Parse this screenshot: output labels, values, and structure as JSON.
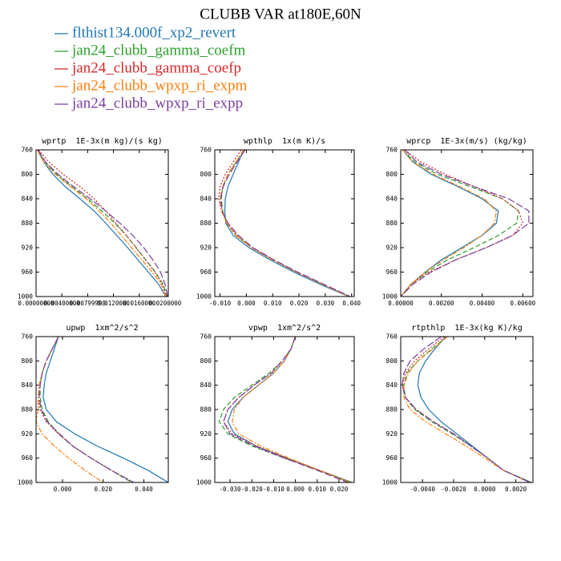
{
  "title": "CLUBB VAR at180E,60N",
  "legend": [
    {
      "name": "flthist134.000f_xp2_revert",
      "color": "#1f77b4"
    },
    {
      "name": "jan24_clubb_gamma_coefm",
      "color": "#2ca02c"
    },
    {
      "name": "jan24_clubb_gamma_coefp",
      "color": "#d62728"
    },
    {
      "name": "jan24_clubb_wpxp_ri_expm",
      "color": "#ff7f0e"
    },
    {
      "name": "jan24_clubb_wpxp_ri_expp",
      "color": "#7b3fa0"
    }
  ],
  "chart_data": [
    {
      "type": "line",
      "title": "wprtp  1E-3x(m kg)/(s kg)",
      "y": [
        760,
        780,
        800,
        820,
        840,
        860,
        880,
        900,
        920,
        940,
        960,
        980,
        1000
      ],
      "ylim": [
        1000,
        760
      ],
      "yticks": [
        760,
        800,
        840,
        880,
        920,
        960,
        1000
      ],
      "xlim": [
        0,
        0.0205
      ],
      "xticks": [
        {
          "value": 0,
          "label": "0.00000000"
        },
        {
          "value": 0.004,
          "label": "0.00400000"
        },
        {
          "value": 0.008,
          "label": "0.00799999"
        },
        {
          "value": 0.012,
          "label": "0.0120000"
        },
        {
          "value": 0.016,
          "label": "0.0160000"
        },
        {
          "value": 0.02,
          "label": "0.0200000"
        }
      ],
      "series": [
        {
          "values": [
            0.0002,
            0.0012,
            0.0026,
            0.0045,
            0.0068,
            0.009,
            0.0108,
            0.0125,
            0.0142,
            0.0158,
            0.0174,
            0.019,
            0.0201
          ]
        },
        {
          "values": [
            0.0002,
            0.0014,
            0.0032,
            0.0055,
            0.008,
            0.0102,
            0.0122,
            0.014,
            0.0155,
            0.017,
            0.0185,
            0.0197,
            0.0203
          ]
        },
        {
          "values": [
            0.0004,
            0.002,
            0.0042,
            0.0068,
            0.009,
            0.0108,
            0.0124,
            0.014,
            0.0155,
            0.017,
            0.0184,
            0.0196,
            0.0202
          ]
        },
        {
          "values": [
            0.0002,
            0.0012,
            0.003,
            0.0053,
            0.0078,
            0.0098,
            0.0116,
            0.0132,
            0.0148,
            0.0164,
            0.018,
            0.0194,
            0.0201
          ]
        },
        {
          "values": [
            0.0003,
            0.0015,
            0.0034,
            0.0058,
            0.0084,
            0.0108,
            0.013,
            0.015,
            0.0167,
            0.0181,
            0.0193,
            0.02,
            0.0204
          ]
        }
      ]
    },
    {
      "type": "line",
      "title": "wpthlp  1x(m K)/s",
      "y": [
        760,
        780,
        800,
        820,
        840,
        860,
        880,
        900,
        920,
        940,
        960,
        980,
        1000
      ],
      "ylim": [
        1000,
        760
      ],
      "yticks": [
        760,
        800,
        840,
        880,
        920,
        960,
        1000
      ],
      "xlim": [
        -0.012,
        0.041
      ],
      "xticks": [
        {
          "value": -0.01,
          "label": "-0.010"
        },
        {
          "value": 0,
          "label": "0.000"
        },
        {
          "value": 0.01,
          "label": "0.010"
        },
        {
          "value": 0.02,
          "label": "0.020"
        },
        {
          "value": 0.03,
          "label": "0.030"
        },
        {
          "value": 0.04,
          "label": "0.040"
        }
      ],
      "series": [
        {
          "values": [
            -0.001,
            -0.003,
            -0.005,
            -0.007,
            -0.008,
            -0.0082,
            -0.0078,
            -0.005,
            0.001,
            0.009,
            0.018,
            0.028,
            0.039
          ]
        },
        {
          "values": [
            -0.001,
            -0.004,
            -0.007,
            -0.009,
            -0.0095,
            -0.009,
            -0.0075,
            -0.004,
            0.002,
            0.01,
            0.019,
            0.029,
            0.039
          ]
        },
        {
          "values": [
            -0.002,
            -0.005,
            -0.008,
            -0.01,
            -0.0105,
            -0.0095,
            -0.007,
            -0.0035,
            0.002,
            0.01,
            0.019,
            0.029,
            0.039
          ]
        },
        {
          "values": [
            -0.001,
            -0.004,
            -0.007,
            -0.009,
            -0.01,
            -0.0095,
            -0.0075,
            -0.004,
            0.002,
            0.01,
            0.019,
            0.029,
            0.039
          ]
        },
        {
          "values": [
            -0.0005,
            -0.0035,
            -0.0065,
            -0.0088,
            -0.0098,
            -0.0092,
            -0.007,
            -0.003,
            0.0025,
            0.0105,
            0.0195,
            0.0295,
            0.0395
          ]
        }
      ]
    },
    {
      "type": "line",
      "title": "wprcp  1E-3x(m/s) (kg/kg)",
      "y": [
        760,
        780,
        800,
        820,
        840,
        860,
        880,
        900,
        920,
        940,
        960,
        980,
        1000
      ],
      "ylim": [
        1000,
        760
      ],
      "yticks": [
        760,
        800,
        840,
        880,
        920,
        960,
        1000
      ],
      "xlim": [
        0,
        0.0065
      ],
      "xticks": [
        {
          "value": 0,
          "label": "0.00000"
        },
        {
          "value": 0.002,
          "label": "0.00200"
        },
        {
          "value": 0.004,
          "label": "0.00400"
        },
        {
          "value": 0.006,
          "label": "0.00600"
        }
      ],
      "series": [
        {
          "values": [
            0.0001,
            0.0006,
            0.0015,
            0.0028,
            0.004,
            0.0048,
            0.0047,
            0.004,
            0.003,
            0.002,
            0.0012,
            0.0005,
            0
          ]
        },
        {
          "values": [
            0.0001,
            0.0007,
            0.0018,
            0.0034,
            0.005,
            0.0058,
            0.0057,
            0.0048,
            0.0036,
            0.0023,
            0.0013,
            0.0005,
            0
          ]
        },
        {
          "values": [
            0.0002,
            0.001,
            0.0022,
            0.0036,
            0.005,
            0.0058,
            0.006,
            0.0055,
            0.0042,
            0.0027,
            0.0014,
            0.0005,
            0
          ]
        },
        {
          "values": [
            0.0001,
            0.0006,
            0.0016,
            0.0029,
            0.0041,
            0.0047,
            0.0046,
            0.004,
            0.0031,
            0.0021,
            0.0012,
            0.0005,
            0
          ]
        },
        {
          "values": [
            0.0002,
            0.0008,
            0.002,
            0.0036,
            0.0053,
            0.0063,
            0.0063,
            0.0055,
            0.0042,
            0.0027,
            0.0015,
            0.0006,
            0
          ]
        }
      ]
    },
    {
      "type": "line",
      "title": "upwp  1xm^2/s^2",
      "y": [
        760,
        780,
        800,
        820,
        840,
        860,
        880,
        900,
        920,
        940,
        960,
        980,
        1000
      ],
      "ylim": [
        1000,
        760
      ],
      "yticks": [
        760,
        800,
        840,
        880,
        920,
        960,
        1000
      ],
      "xlim": [
        -0.013,
        0.052
      ],
      "xticks": [
        {
          "value": 0,
          "label": "0.000"
        },
        {
          "value": 0.02,
          "label": "0.020"
        },
        {
          "value": 0.04,
          "label": "0.040"
        }
      ],
      "series": [
        {
          "values": [
            -0.002,
            -0.004,
            -0.006,
            -0.008,
            -0.009,
            -0.0095,
            -0.008,
            -0.003,
            0.006,
            0.017,
            0.03,
            0.042,
            0.052
          ]
        },
        {
          "values": [
            -0.002,
            -0.005,
            -0.008,
            -0.01,
            -0.011,
            -0.011,
            -0.01,
            -0.007,
            -0.002,
            0.005,
            0.014,
            0.024,
            0.034
          ]
        },
        {
          "values": [
            -0.002,
            -0.005,
            -0.008,
            -0.01,
            -0.0115,
            -0.012,
            -0.011,
            -0.008,
            -0.002,
            0.005,
            0.014,
            0.024,
            0.035
          ]
        },
        {
          "values": [
            -0.002,
            -0.005,
            -0.008,
            -0.01,
            -0.0115,
            -0.012,
            -0.012,
            -0.013,
            -0.01,
            -0.004,
            0.003,
            0.011,
            0.02
          ]
        },
        {
          "values": [
            -0.002,
            -0.005,
            -0.008,
            -0.01,
            -0.011,
            -0.0115,
            -0.0105,
            -0.0075,
            -0.0015,
            0.005,
            0.014,
            0.024,
            0.035
          ]
        }
      ]
    },
    {
      "type": "line",
      "title": "vpwp  1xm^2/s^2",
      "y": [
        760,
        780,
        800,
        820,
        840,
        860,
        880,
        900,
        920,
        940,
        960,
        980,
        1000
      ],
      "ylim": [
        1000,
        760
      ],
      "yticks": [
        760,
        800,
        840,
        880,
        920,
        960,
        1000
      ],
      "xlim": [
        -0.037,
        0.027
      ],
      "xticks": [
        {
          "value": -0.03,
          "label": "-0.030"
        },
        {
          "value": -0.02,
          "label": "-0.020"
        },
        {
          "value": -0.01,
          "label": "-0.010"
        },
        {
          "value": 0,
          "label": "0.000"
        },
        {
          "value": 0.01,
          "label": "0.010"
        },
        {
          "value": 0.02,
          "label": "0.020"
        }
      ],
      "series": [
        {
          "values": [
            0,
            -0.002,
            -0.005,
            -0.01,
            -0.017,
            -0.024,
            -0.029,
            -0.031,
            -0.028,
            -0.018,
            -0.004,
            0.011,
            0.026
          ]
        },
        {
          "values": [
            0,
            -0.002,
            -0.006,
            -0.012,
            -0.02,
            -0.028,
            -0.033,
            -0.035,
            -0.031,
            -0.02,
            -0.005,
            0.011,
            0.026
          ]
        },
        {
          "values": [
            0,
            -0.002,
            -0.006,
            -0.011,
            -0.019,
            -0.026,
            -0.031,
            -0.033,
            -0.029,
            -0.018,
            -0.004,
            0.011,
            0.025
          ]
        },
        {
          "values": [
            0,
            -0.002,
            -0.005,
            -0.01,
            -0.017,
            -0.024,
            -0.028,
            -0.029,
            -0.026,
            -0.016,
            -0.003,
            0.011,
            0.025
          ]
        },
        {
          "values": [
            0,
            -0.002,
            -0.006,
            -0.011,
            -0.019,
            -0.026,
            -0.031,
            -0.033,
            -0.03,
            -0.019,
            -0.005,
            0.01,
            0.024
          ]
        }
      ]
    },
    {
      "type": "line",
      "title": "rtpthlp  1E-3x(kg K)/kg",
      "y": [
        760,
        780,
        800,
        820,
        840,
        860,
        880,
        900,
        920,
        940,
        960,
        980,
        1000
      ],
      "ylim": [
        1000,
        760
      ],
      "yticks": [
        760,
        800,
        840,
        880,
        920,
        960,
        1000
      ],
      "xlim": [
        -0.0054,
        0.0031
      ],
      "xticks": [
        {
          "value": -0.004,
          "label": "-0.0040"
        },
        {
          "value": -0.002,
          "label": "-0.0020"
        },
        {
          "value": 0,
          "label": "0.0000"
        },
        {
          "value": 0.002,
          "label": "0.0020"
        }
      ],
      "series": [
        {
          "values": [
            -0.0025,
            -0.0032,
            -0.0038,
            -0.0042,
            -0.0043,
            -0.0041,
            -0.0036,
            -0.0028,
            -0.0018,
            -0.0008,
            0.0002,
            0.0012,
            0.003
          ]
        },
        {
          "values": [
            -0.0024,
            -0.0034,
            -0.0043,
            -0.005,
            -0.0052,
            -0.0051,
            -0.0045,
            -0.0034,
            -0.0021,
            -0.0009,
            0.0002,
            0.0012,
            0.003
          ]
        },
        {
          "values": [
            -0.0026,
            -0.0036,
            -0.0045,
            -0.0051,
            -0.0053,
            -0.0051,
            -0.0044,
            -0.0033,
            -0.002,
            -0.0009,
            0.0002,
            0.0012,
            0.0029
          ]
        },
        {
          "values": [
            -0.0024,
            -0.0033,
            -0.0043,
            -0.0049,
            -0.0052,
            -0.0052,
            -0.0048,
            -0.0038,
            -0.0025,
            -0.0012,
            0,
            0.0012,
            0.0029
          ]
        },
        {
          "values": [
            -0.0028,
            -0.0039,
            -0.0048,
            -0.0052,
            -0.0053,
            -0.0051,
            -0.0044,
            -0.0033,
            -0.002,
            -0.0009,
            0.0002,
            0.0012,
            0.0029
          ]
        }
      ]
    }
  ]
}
